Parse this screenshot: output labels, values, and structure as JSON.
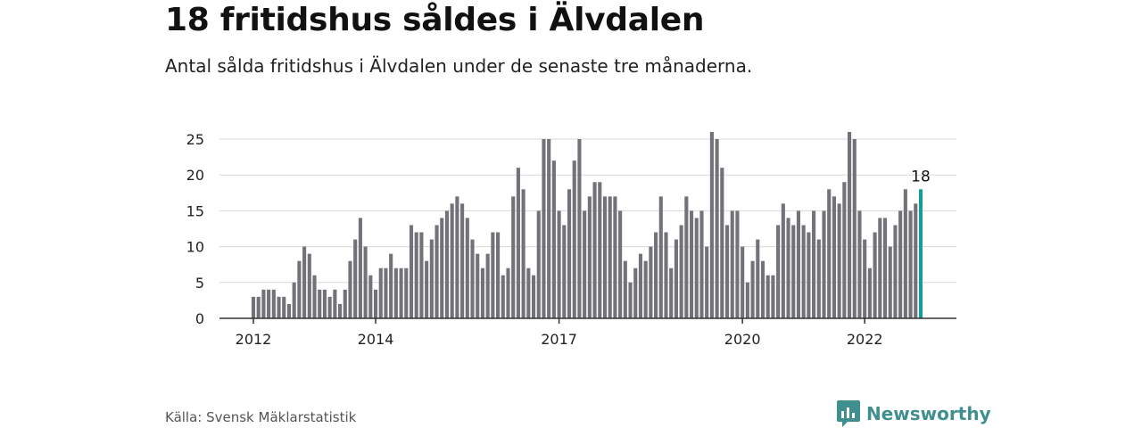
{
  "title": "18 fritidshus såldes i Älvdalen",
  "subtitle": "Antal sålda fritidshus i Älvdalen under de senaste tre månaderna.",
  "source": "Källa: Svensk Mäklarstatistik",
  "brand": {
    "name": "Newsworthy",
    "icon": "newsworthy-logo-icon"
  },
  "colors": {
    "bar": "#737278",
    "highlight": "#1a9a94",
    "grid": "#d9d9d9",
    "axis": "#333333",
    "brand": "#3e8f8d"
  },
  "chart_data": {
    "type": "bar",
    "title": "18 fritidshus såldes i Älvdalen",
    "subtitle": "Antal sålda fritidshus i Älvdalen under de senaste tre månaderna.",
    "xlabel": "",
    "ylabel": "",
    "ylim": [
      0,
      26
    ],
    "yticks": [
      0,
      5,
      10,
      15,
      20,
      25
    ],
    "grid": true,
    "x_start": "2012-01",
    "x_end": "2023-06",
    "xtick_labels": [
      {
        "label": "2012",
        "month": "2012-01"
      },
      {
        "label": "2014",
        "month": "2014-01"
      },
      {
        "label": "2017",
        "month": "2017-01"
      },
      {
        "label": "2020",
        "month": "2020-01"
      },
      {
        "label": "2022",
        "month": "2022-01"
      }
    ],
    "values": [
      3,
      3,
      4,
      4,
      4,
      3,
      3,
      2,
      5,
      8,
      10,
      9,
      6,
      4,
      4,
      3,
      4,
      2,
      4,
      8,
      11,
      14,
      10,
      6,
      4,
      7,
      7,
      9,
      7,
      7,
      7,
      13,
      12,
      12,
      8,
      11,
      13,
      14,
      15,
      16,
      17,
      16,
      14,
      11,
      9,
      7,
      9,
      12,
      12,
      6,
      7,
      17,
      21,
      18,
      7,
      6,
      15,
      25,
      25,
      22,
      15,
      13,
      18,
      22,
      25,
      15,
      17,
      19,
      19,
      17,
      17,
      17,
      15,
      8,
      5,
      7,
      9,
      8,
      10,
      12,
      17,
      12,
      7,
      11,
      13,
      17,
      15,
      14,
      15,
      10,
      26,
      25,
      21,
      13,
      15,
      15,
      10,
      5,
      8,
      11,
      8,
      6,
      6,
      13,
      16,
      14,
      13,
      15,
      13,
      12,
      15,
      11,
      15,
      18,
      17,
      16,
      19,
      26,
      25,
      15,
      11,
      7,
      12,
      14,
      14,
      10,
      13,
      15,
      18,
      15,
      16,
      18
    ],
    "highlight_last": true,
    "annotation": {
      "text": "18",
      "target": "last"
    }
  }
}
